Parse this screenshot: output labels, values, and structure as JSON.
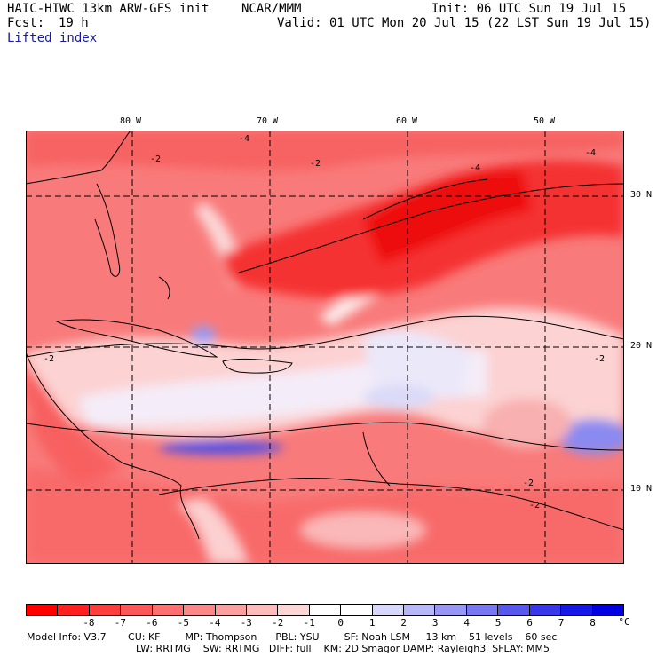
{
  "header": {
    "model": "HAIC-HIWC 13km ARW-GFS init",
    "org": "NCAR/MMM",
    "init": "Init: 06 UTC Sun 19 Jul 15",
    "fcst_label": "Fcst:",
    "fcst_value": "19 h",
    "valid": "Valid: 01 UTC Mon 20 Jul 15 (22 LST Sun 19 Jul 15)",
    "field": "Lifted index"
  },
  "map": {
    "lon_labels": [
      "80 W",
      "70 W",
      "60 W",
      "50 W"
    ],
    "lat_labels": [
      "30 N",
      "20 N",
      "10 N"
    ],
    "contour_labels": [
      "-2",
      "-2",
      "-2",
      "-4",
      "-4",
      "-4",
      "-2",
      "-2",
      "-2"
    ],
    "colors": {
      "strong_neg": "#f40000",
      "mid_neg": "#f75c5c",
      "light_neg": "#fcc4c4",
      "neutral": "#ffffff",
      "light_pos": "#c8c8f8",
      "strong_pos": "#3030f0"
    }
  },
  "colorbar": {
    "colors": [
      "#ff0000",
      "#ff2020",
      "#fe3d3d",
      "#fd5858",
      "#fc7070",
      "#fb8888",
      "#fba0a0",
      "#fcbcbc",
      "#fdd6d6",
      "#ffffff",
      "#ffffff",
      "#d8d8fc",
      "#b8b8f8",
      "#9898f4",
      "#7878f0",
      "#5858ee",
      "#3838ea",
      "#1818e6",
      "#0000e0"
    ],
    "labels": [
      "-8",
      "-7",
      "-6",
      "-5",
      "-4",
      "-3",
      "-2",
      "-1",
      "0",
      "1",
      "2",
      "3",
      "4",
      "5",
      "6",
      "7",
      "8"
    ],
    "unit": "°C"
  },
  "footer": {
    "line1": "Model Info: V3.7       CU: KF        MP: Thompson      PBL: YSU        SF: Noah LSM     13 km    51 levels    60 sec",
    "line2": "LW: RRTMG    SW: RRTMG   DIFF: full    KM: 2D Smagor DAMP: Rayleigh3  SFLAY: MM5"
  }
}
